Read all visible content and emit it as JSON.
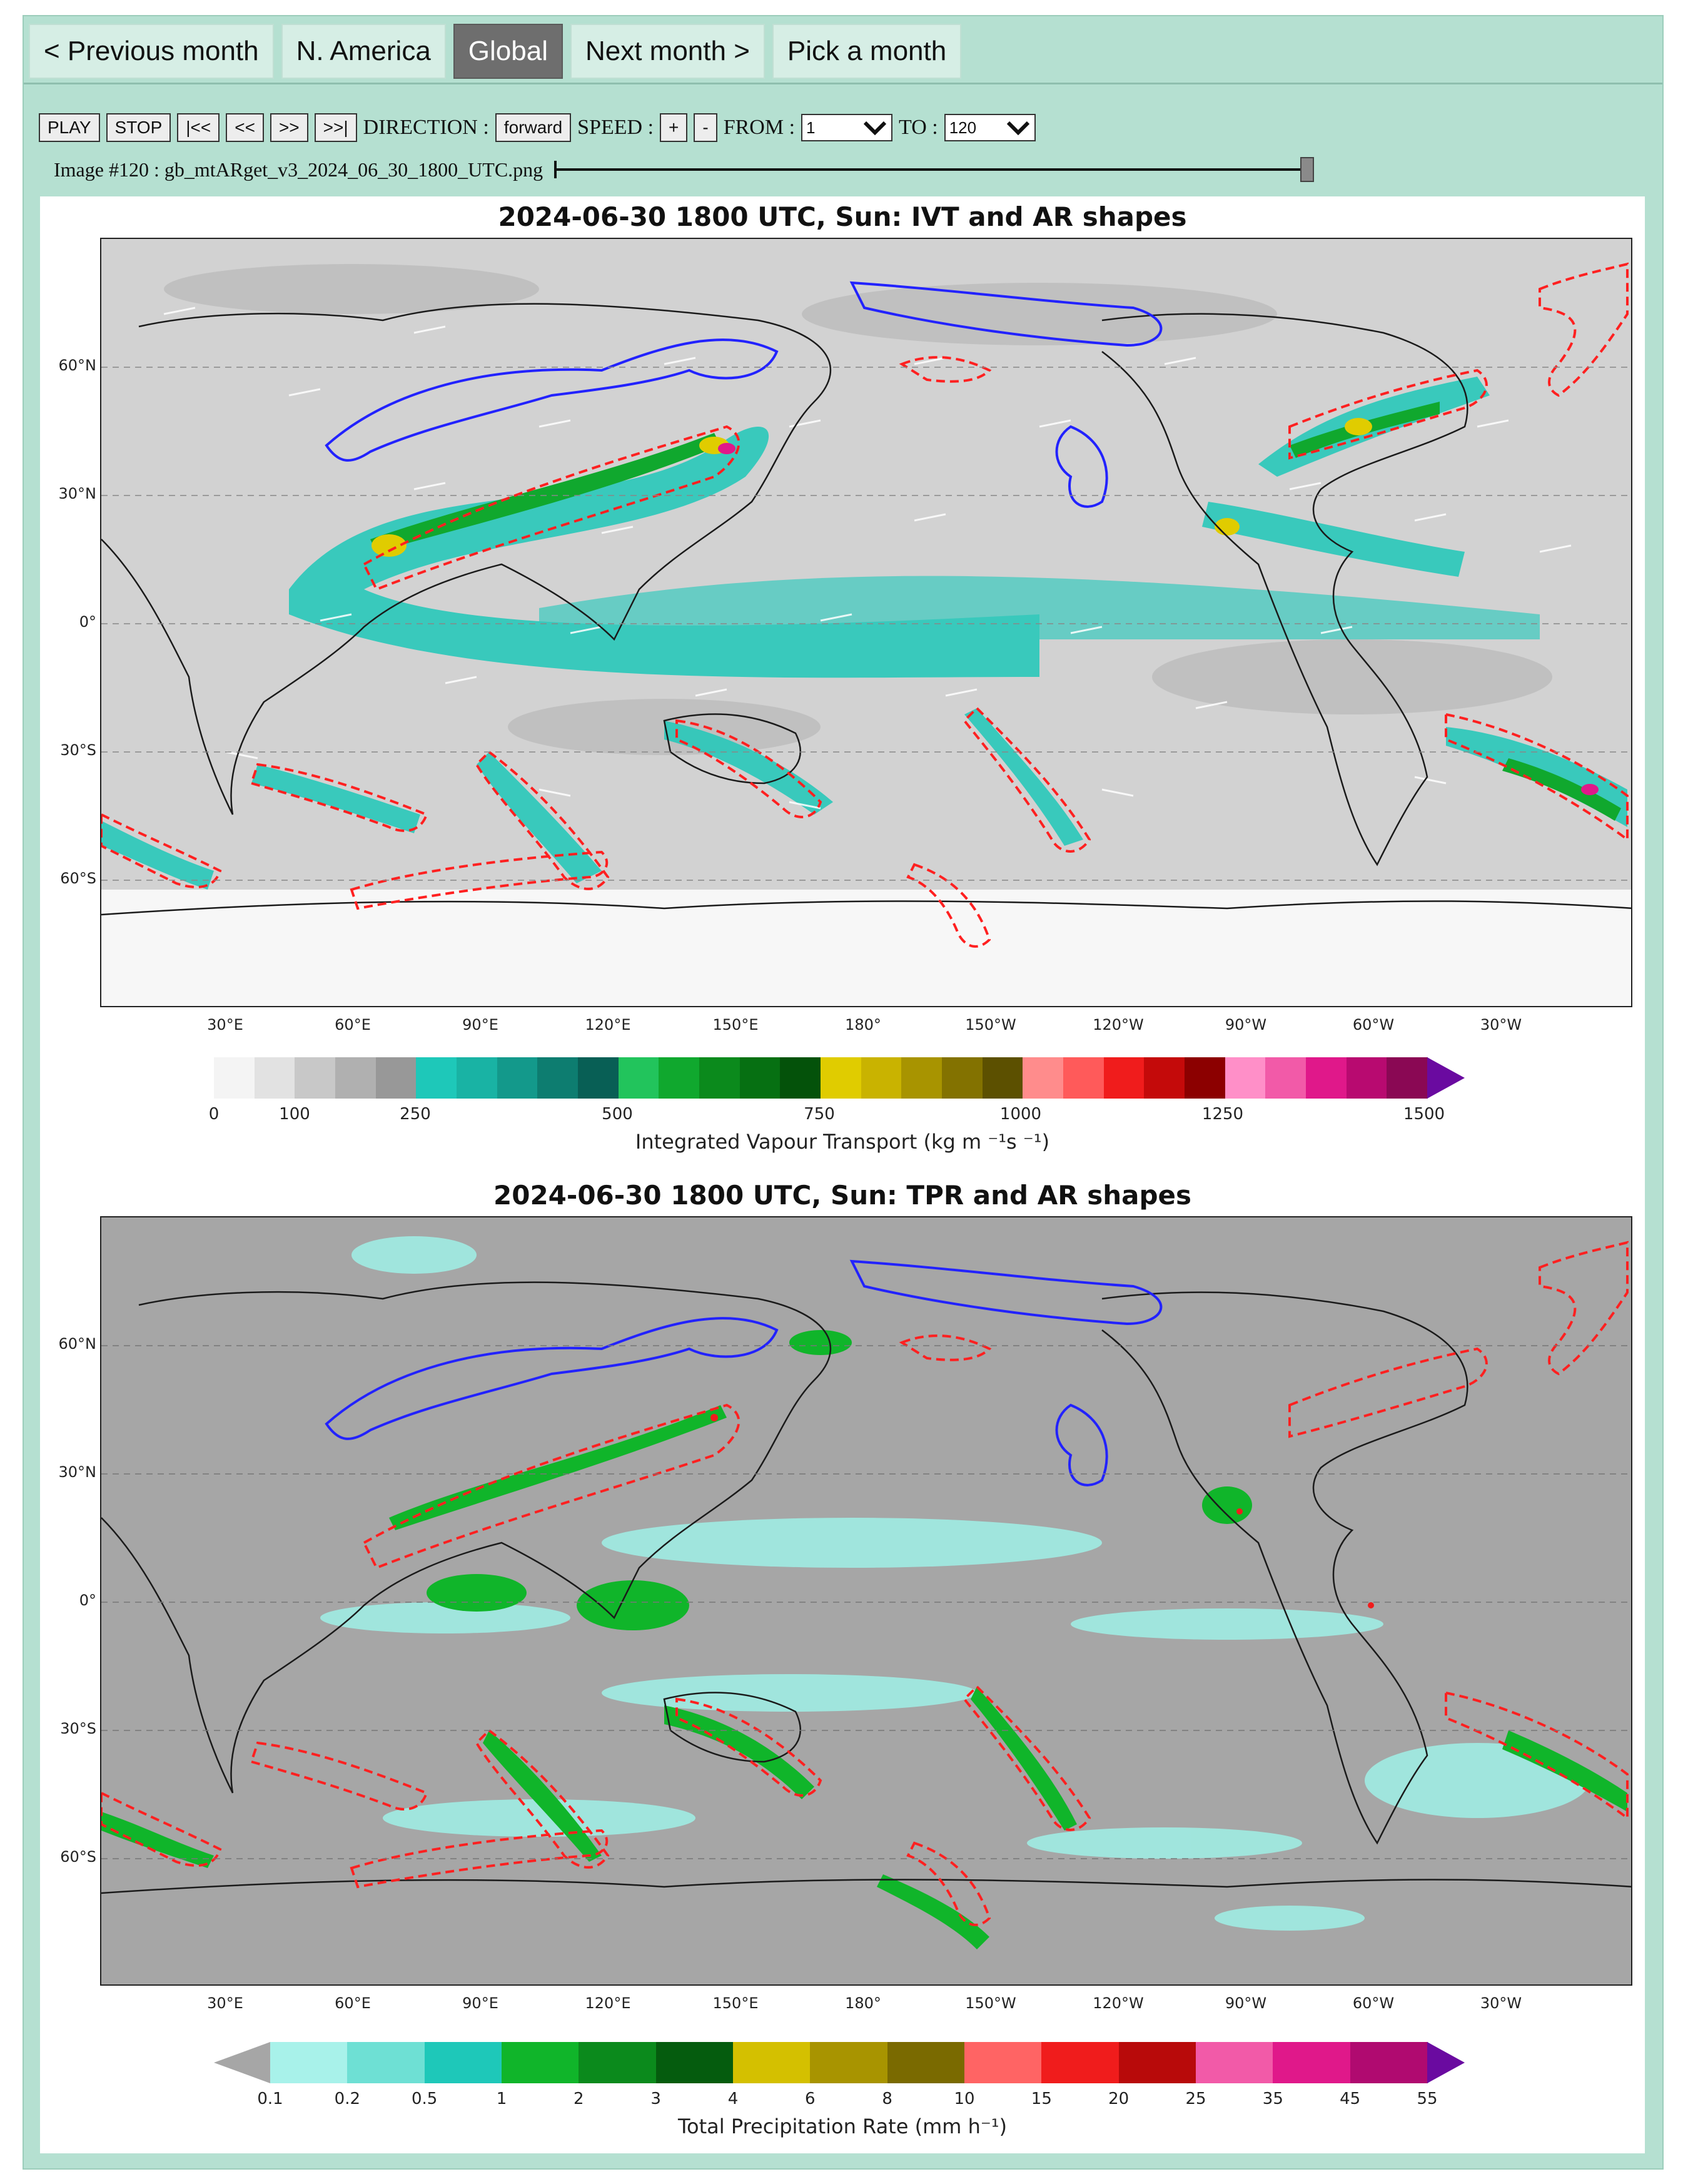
{
  "nav": {
    "prev": "< Previous month",
    "namerica": "N. America",
    "global": "Global",
    "next": "Next month >",
    "pick": "Pick a month"
  },
  "controls": {
    "play": "PLAY",
    "stop": "STOP",
    "first": "|<<",
    "back": "<<",
    "fwd": ">>",
    "last": ">>|",
    "direction_label": "DIRECTION :",
    "direction_value": "forward",
    "speed_label": "SPEED :",
    "speed_plus": "+",
    "speed_minus": "-",
    "from_label": "FROM :",
    "from_value": "1",
    "to_label": "TO :",
    "to_value": "120"
  },
  "image_line": {
    "text": "Image #120 : gb_mtARget_v3_2024_06_30_1800_UTC.png",
    "progress": 1.0
  },
  "plot1": {
    "title": "2024-06-30 1800 UTC, Sun: IVT and AR shapes",
    "lat_labels": [
      "60°N",
      "30°N",
      "0°",
      "30°S",
      "60°S"
    ],
    "lon_labels": [
      "30°E",
      "60°E",
      "90°E",
      "120°E",
      "150°E",
      "180°",
      "150°W",
      "120°W",
      "90°W",
      "60°W",
      "30°W"
    ],
    "colorbar_label": "Integrated Vapour Transport (kg m ⁻¹s ⁻¹)",
    "colorbar_ticks": [
      "0",
      "100",
      "250",
      "500",
      "750",
      "1000",
      "1250",
      "1500"
    ],
    "colorbar_colors": [
      "#f4f4f4",
      "#e2e2e2",
      "#c8c8c8",
      "#b0b0b0",
      "#989898",
      "#1ec8b9",
      "#19b3a4",
      "#13998b",
      "#0d7d70",
      "#085f55",
      "#22c45c",
      "#10a82e",
      "#0b8a1c",
      "#067012",
      "#04520a",
      "#e0cc00",
      "#c9b300",
      "#a89400",
      "#837200",
      "#5c5000",
      "#ff8c8c",
      "#ff5a5a",
      "#f01c1c",
      "#c40a0a",
      "#8c0000",
      "#ff8fc8",
      "#f25aa8",
      "#e0188a",
      "#b80a70",
      "#8a0854",
      "#6a0aa0"
    ]
  },
  "plot2": {
    "title": "2024-06-30 1800 UTC, Sun: TPR and AR shapes",
    "lat_labels": [
      "60°N",
      "30°N",
      "0°",
      "30°S",
      "60°S"
    ],
    "lon_labels": [
      "30°E",
      "60°E",
      "90°E",
      "120°E",
      "150°E",
      "180°",
      "150°W",
      "120°W",
      "90°W",
      "60°W",
      "30°W"
    ],
    "colorbar_label": "Total Precipitation Rate (mm h⁻¹)",
    "colorbar_ticks": [
      "0.1",
      "0.2",
      "0.5",
      "1",
      "2",
      "3",
      "4",
      "6",
      "8",
      "10",
      "15",
      "20",
      "25",
      "35",
      "45",
      "55"
    ],
    "colorbar_colors": [
      "#a8f2ea",
      "#6ee0d4",
      "#1ec8b9",
      "#10b52a",
      "#0b8a1c",
      "#055c0e",
      "#d4c000",
      "#a89400",
      "#7a6a00",
      "#ff6464",
      "#f01c1c",
      "#b80a0a",
      "#f25aa8",
      "#e0188a",
      "#b00a70",
      "#6a0aa0"
    ]
  }
}
